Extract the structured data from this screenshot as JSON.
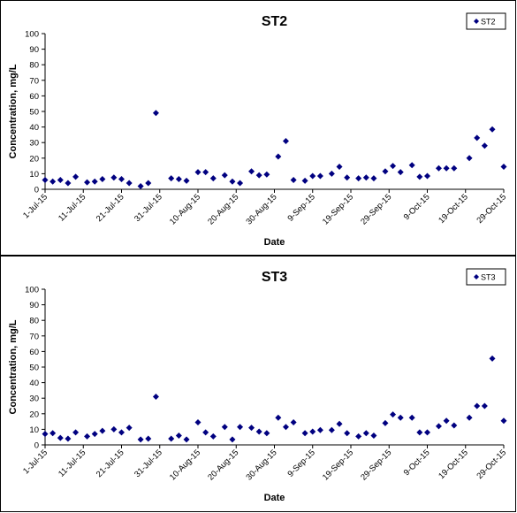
{
  "chart_data": [
    {
      "type": "scatter",
      "title": "ST2",
      "xlabel": "Date",
      "ylabel": "Concentration, mg/L",
      "ylim": [
        0,
        100
      ],
      "yticks": [
        0,
        10,
        20,
        30,
        40,
        50,
        60,
        70,
        80,
        90,
        100
      ],
      "xlim": [
        "2015-07-01",
        "2015-10-29"
      ],
      "xtick_labels": [
        "1-Jul-15",
        "11-Jul-15",
        "21-Jul-15",
        "31-Jul-15",
        "10-Aug-15",
        "20-Aug-15",
        "30-Aug-15",
        "9-Sep-15",
        "19-Sep-15",
        "29-Sep-15",
        "9-Oct-15",
        "19-Oct-15",
        "29-Oct-15"
      ],
      "grid": false,
      "legend": "top-right",
      "marker": "diamond",
      "color": "#000080",
      "series": [
        {
          "name": "ST2",
          "points": [
            [
              "2015-07-01",
              6
            ],
            [
              "2015-07-03",
              5
            ],
            [
              "2015-07-05",
              6
            ],
            [
              "2015-07-07",
              4
            ],
            [
              "2015-07-09",
              8
            ],
            [
              "2015-07-12",
              4.5
            ],
            [
              "2015-07-14",
              5
            ],
            [
              "2015-07-16",
              6.5
            ],
            [
              "2015-07-19",
              7.5
            ],
            [
              "2015-07-21",
              6.5
            ],
            [
              "2015-07-23",
              4
            ],
            [
              "2015-07-26",
              2
            ],
            [
              "2015-07-28",
              4
            ],
            [
              "2015-07-30",
              49
            ],
            [
              "2015-08-03",
              7
            ],
            [
              "2015-08-05",
              6.5
            ],
            [
              "2015-08-07",
              5.5
            ],
            [
              "2015-08-10",
              11
            ],
            [
              "2015-08-12",
              11
            ],
            [
              "2015-08-14",
              7
            ],
            [
              "2015-08-17",
              9
            ],
            [
              "2015-08-19",
              5
            ],
            [
              "2015-08-21",
              4
            ],
            [
              "2015-08-24",
              11.5
            ],
            [
              "2015-08-26",
              9
            ],
            [
              "2015-08-28",
              9.5
            ],
            [
              "2015-08-31",
              21
            ],
            [
              "2015-09-02",
              31
            ],
            [
              "2015-09-04",
              6
            ],
            [
              "2015-09-07",
              5.5
            ],
            [
              "2015-09-09",
              8.5
            ],
            [
              "2015-09-11",
              8.5
            ],
            [
              "2015-09-14",
              10
            ],
            [
              "2015-09-16",
              14.5
            ],
            [
              "2015-09-18",
              7.5
            ],
            [
              "2015-09-21",
              7
            ],
            [
              "2015-09-23",
              7.5
            ],
            [
              "2015-09-25",
              7
            ],
            [
              "2015-09-28",
              11.5
            ],
            [
              "2015-09-30",
              15
            ],
            [
              "2015-10-02",
              11
            ],
            [
              "2015-10-05",
              15.5
            ],
            [
              "2015-10-07",
              8
            ],
            [
              "2015-10-09",
              8.5
            ],
            [
              "2015-10-12",
              13.5
            ],
            [
              "2015-10-14",
              13.5
            ],
            [
              "2015-10-16",
              13.5
            ],
            [
              "2015-10-20",
              20
            ],
            [
              "2015-10-22",
              33
            ],
            [
              "2015-10-24",
              28
            ],
            [
              "2015-10-26",
              38.5
            ],
            [
              "2015-10-29",
              14.5
            ]
          ]
        }
      ]
    },
    {
      "type": "scatter",
      "title": "ST3",
      "xlabel": "Date",
      "ylabel": "Concentration, mg/L",
      "ylim": [
        0,
        100
      ],
      "yticks": [
        0,
        10,
        20,
        30,
        40,
        50,
        60,
        70,
        80,
        90,
        100
      ],
      "xlim": [
        "2015-07-01",
        "2015-10-29"
      ],
      "xtick_labels": [
        "1-Jul-15",
        "11-Jul-15",
        "21-Jul-15",
        "31-Jul-15",
        "10-Aug-15",
        "20-Aug-15",
        "30-Aug-15",
        "9-Sep-15",
        "19-Sep-15",
        "29-Sep-15",
        "9-Oct-15",
        "19-Oct-15",
        "29-Oct-15"
      ],
      "grid": false,
      "legend": "top-right",
      "marker": "diamond",
      "color": "#000080",
      "series": [
        {
          "name": "ST3",
          "points": [
            [
              "2015-07-01",
              7
            ],
            [
              "2015-07-03",
              7.5
            ],
            [
              "2015-07-05",
              4.5
            ],
            [
              "2015-07-07",
              4
            ],
            [
              "2015-07-09",
              8
            ],
            [
              "2015-07-12",
              5.5
            ],
            [
              "2015-07-14",
              7
            ],
            [
              "2015-07-16",
              9
            ],
            [
              "2015-07-19",
              10
            ],
            [
              "2015-07-21",
              8
            ],
            [
              "2015-07-23",
              11
            ],
            [
              "2015-07-26",
              3.5
            ],
            [
              "2015-07-28",
              4
            ],
            [
              "2015-07-30",
              31
            ],
            [
              "2015-08-03",
              4
            ],
            [
              "2015-08-05",
              6
            ],
            [
              "2015-08-07",
              3.5
            ],
            [
              "2015-08-10",
              14.5
            ],
            [
              "2015-08-12",
              8
            ],
            [
              "2015-08-14",
              5.5
            ],
            [
              "2015-08-17",
              11.5
            ],
            [
              "2015-08-19",
              3.5
            ],
            [
              "2015-08-21",
              11.5
            ],
            [
              "2015-08-24",
              11
            ],
            [
              "2015-08-26",
              8.5
            ],
            [
              "2015-08-28",
              7.5
            ],
            [
              "2015-08-31",
              17.5
            ],
            [
              "2015-09-02",
              11.5
            ],
            [
              "2015-09-04",
              14.5
            ],
            [
              "2015-09-07",
              7.5
            ],
            [
              "2015-09-09",
              8.5
            ],
            [
              "2015-09-11",
              9.5
            ],
            [
              "2015-09-14",
              9.5
            ],
            [
              "2015-09-16",
              13.5
            ],
            [
              "2015-09-18",
              7.5
            ],
            [
              "2015-09-21",
              5.5
            ],
            [
              "2015-09-23",
              7.5
            ],
            [
              "2015-09-25",
              6
            ],
            [
              "2015-09-28",
              14
            ],
            [
              "2015-09-30",
              19.5
            ],
            [
              "2015-10-02",
              17.5
            ],
            [
              "2015-10-05",
              17.5
            ],
            [
              "2015-10-07",
              8
            ],
            [
              "2015-10-09",
              8
            ],
            [
              "2015-10-12",
              12
            ],
            [
              "2015-10-14",
              15.5
            ],
            [
              "2015-10-16",
              12.5
            ],
            [
              "2015-10-20",
              17.5
            ],
            [
              "2015-10-22",
              25
            ],
            [
              "2015-10-24",
              25
            ],
            [
              "2015-10-26",
              55.5
            ],
            [
              "2015-10-29",
              15.5
            ]
          ]
        }
      ]
    }
  ]
}
